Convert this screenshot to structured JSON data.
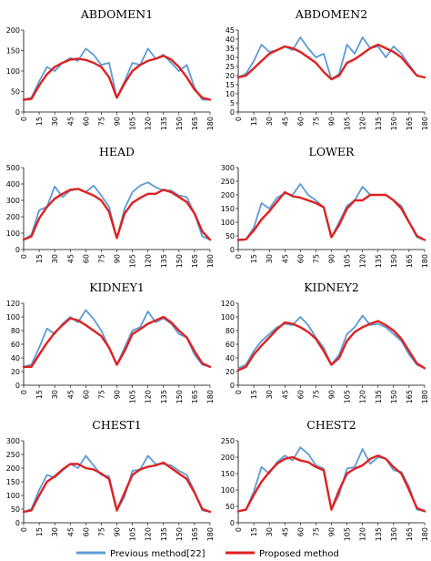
{
  "legend": {
    "position": "bottom",
    "entries": [
      {
        "label": "Previous  method[22]",
        "color": "#5b9bd5"
      },
      {
        "label": "Proposed method",
        "color": "#e02020"
      }
    ]
  },
  "colors": {
    "previous": "#5b9bd5",
    "proposed": "#e02020"
  },
  "chart_data": [
    {
      "type": "line",
      "title": "ABDOMEN1",
      "xlabel": "",
      "ylabel": "",
      "x": [
        0,
        7.5,
        15,
        22.5,
        30,
        37.5,
        45,
        52.5,
        60,
        67.5,
        75,
        82.5,
        90,
        97.5,
        105,
        112.5,
        120,
        127.5,
        135,
        142.5,
        150,
        157.5,
        165,
        172.5,
        180
      ],
      "xticks": [
        0,
        15,
        30,
        45,
        60,
        75,
        90,
        105,
        120,
        135,
        150,
        165,
        180
      ],
      "ylim": [
        0,
        200
      ],
      "yticks": [
        0,
        50,
        100,
        150,
        200
      ],
      "grid": false,
      "legend": "bottom",
      "series": [
        {
          "name": "Previous  method[22]",
          "values": [
            30,
            35,
            75,
            110,
            100,
            120,
            132,
            125,
            155,
            140,
            115,
            120,
            35,
            75,
            120,
            115,
            155,
            130,
            140,
            120,
            100,
            115,
            60,
            30,
            30
          ]
        },
        {
          "name": "Proposed method",
          "values": [
            30,
            32,
            65,
            92,
            110,
            120,
            128,
            130,
            127,
            120,
            110,
            85,
            35,
            70,
            100,
            115,
            125,
            130,
            137,
            128,
            110,
            85,
            55,
            35,
            30
          ]
        }
      ]
    },
    {
      "type": "line",
      "title": "ABDOMEN2",
      "xlabel": "",
      "ylabel": "",
      "x": [
        0,
        7.5,
        15,
        22.5,
        30,
        37.5,
        45,
        52.5,
        60,
        67.5,
        75,
        82.5,
        90,
        97.5,
        105,
        112.5,
        120,
        127.5,
        135,
        142.5,
        150,
        157.5,
        165,
        172.5,
        180
      ],
      "xticks": [
        0,
        15,
        30,
        45,
        60,
        75,
        90,
        105,
        120,
        135,
        150,
        165,
        180
      ],
      "ylim": [
        0,
        45
      ],
      "yticks": [
        0,
        5,
        10,
        15,
        20,
        25,
        30,
        35,
        40,
        45
      ],
      "grid": false,
      "legend": "bottom",
      "series": [
        {
          "name": "Previous  method[22]",
          "values": [
            19,
            21,
            28,
            37,
            33,
            34,
            36,
            34,
            41,
            35,
            30,
            32,
            18,
            21,
            37,
            32,
            41,
            35,
            36,
            30,
            36,
            32,
            26,
            20,
            19
          ]
        },
        {
          "name": "Proposed method",
          "values": [
            19,
            20,
            24,
            28,
            32,
            34,
            36,
            35,
            33,
            30,
            27,
            22,
            18,
            20,
            27,
            29,
            32,
            35,
            37,
            35,
            33,
            30,
            25,
            20,
            19
          ]
        }
      ]
    },
    {
      "type": "line",
      "title": "HEAD",
      "xlabel": "",
      "ylabel": "",
      "x": [
        0,
        7.5,
        15,
        22.5,
        30,
        37.5,
        45,
        52.5,
        60,
        67.5,
        75,
        82.5,
        90,
        97.5,
        105,
        112.5,
        120,
        127.5,
        135,
        142.5,
        150,
        157.5,
        165,
        172.5,
        180
      ],
      "xticks": [
        0,
        15,
        30,
        45,
        60,
        75,
        90,
        105,
        120,
        135,
        150,
        165,
        180
      ],
      "ylim": [
        0,
        500
      ],
      "yticks": [
        0,
        100,
        200,
        300,
        400,
        500
      ],
      "grid": false,
      "legend": "bottom",
      "series": [
        {
          "name": "Previous  method[22]",
          "values": [
            60,
            90,
            240,
            260,
            385,
            320,
            360,
            370,
            350,
            390,
            330,
            260,
            70,
            250,
            350,
            390,
            410,
            380,
            360,
            360,
            330,
            320,
            220,
            80,
            60
          ]
        },
        {
          "name": "Proposed method",
          "values": [
            60,
            80,
            190,
            260,
            310,
            340,
            365,
            370,
            350,
            330,
            300,
            230,
            70,
            220,
            285,
            315,
            340,
            340,
            365,
            350,
            320,
            290,
            220,
            110,
            60
          ]
        }
      ]
    },
    {
      "type": "line",
      "title": "LOWER",
      "xlabel": "",
      "ylabel": "",
      "x": [
        0,
        7.5,
        15,
        22.5,
        30,
        37.5,
        45,
        52.5,
        60,
        67.5,
        75,
        82.5,
        90,
        97.5,
        105,
        112.5,
        120,
        127.5,
        135,
        142.5,
        150,
        157.5,
        165,
        172.5,
        180
      ],
      "xticks": [
        0,
        15,
        30,
        45,
        60,
        75,
        90,
        105,
        120,
        135,
        150,
        165,
        180
      ],
      "ylim": [
        0,
        300
      ],
      "yticks": [
        0,
        50,
        100,
        150,
        200,
        250,
        300
      ],
      "grid": false,
      "legend": "bottom",
      "series": [
        {
          "name": "Previous  method[22]",
          "values": [
            35,
            37,
            80,
            170,
            150,
            190,
            205,
            200,
            240,
            200,
            180,
            155,
            45,
            100,
            160,
            180,
            230,
            200,
            200,
            200,
            180,
            160,
            100,
            45,
            35
          ]
        },
        {
          "name": "Proposed method",
          "values": [
            35,
            37,
            70,
            110,
            140,
            175,
            210,
            195,
            190,
            180,
            170,
            155,
            45,
            90,
            150,
            180,
            180,
            200,
            200,
            200,
            180,
            150,
            100,
            50,
            35
          ]
        }
      ]
    },
    {
      "type": "line",
      "title": "KIDNEY1",
      "xlabel": "",
      "ylabel": "",
      "x": [
        0,
        7.5,
        15,
        22.5,
        30,
        37.5,
        45,
        52.5,
        60,
        67.5,
        75,
        82.5,
        90,
        97.5,
        105,
        112.5,
        120,
        127.5,
        135,
        142.5,
        150,
        157.5,
        165,
        172.5,
        180
      ],
      "xticks": [
        0,
        15,
        30,
        45,
        60,
        75,
        90,
        105,
        120,
        135,
        150,
        165,
        180
      ],
      "ylim": [
        0,
        120
      ],
      "yticks": [
        0,
        20,
        40,
        60,
        80,
        100,
        120
      ],
      "grid": false,
      "legend": "bottom",
      "series": [
        {
          "name": "Previous  method[22]",
          "values": [
            27,
            30,
            55,
            83,
            75,
            90,
            100,
            92,
            110,
            97,
            80,
            55,
            30,
            55,
            80,
            85,
            108,
            92,
            98,
            90,
            75,
            70,
            45,
            30,
            27
          ]
        },
        {
          "name": "Proposed method",
          "values": [
            27,
            27,
            45,
            62,
            77,
            88,
            98,
            95,
            88,
            80,
            72,
            55,
            30,
            50,
            75,
            82,
            90,
            95,
            100,
            92,
            80,
            70,
            50,
            32,
            27
          ]
        }
      ]
    },
    {
      "type": "line",
      "title": "KIDNEY2",
      "xlabel": "",
      "ylabel": "",
      "x": [
        0,
        7.5,
        15,
        22.5,
        30,
        37.5,
        45,
        52.5,
        60,
        67.5,
        75,
        82.5,
        90,
        97.5,
        105,
        112.5,
        120,
        127.5,
        135,
        142.5,
        150,
        157.5,
        165,
        172.5,
        180
      ],
      "xticks": [
        0,
        15,
        30,
        45,
        60,
        75,
        90,
        105,
        120,
        135,
        150,
        165,
        180
      ],
      "ylim": [
        0,
        120
      ],
      "yticks": [
        0,
        20,
        40,
        60,
        80,
        100,
        120
      ],
      "grid": false,
      "legend": "bottom",
      "series": [
        {
          "name": "Previous  method[22]",
          "values": [
            25,
            30,
            50,
            65,
            75,
            85,
            90,
            88,
            100,
            88,
            70,
            55,
            30,
            45,
            75,
            85,
            102,
            88,
            90,
            85,
            75,
            65,
            45,
            30,
            25
          ]
        },
        {
          "name": "Proposed method",
          "values": [
            22,
            27,
            45,
            58,
            70,
            82,
            92,
            90,
            85,
            78,
            68,
            50,
            30,
            40,
            65,
            78,
            85,
            90,
            94,
            88,
            80,
            68,
            50,
            32,
            25
          ]
        }
      ]
    },
    {
      "type": "line",
      "title": "CHEST1",
      "xlabel": "",
      "ylabel": "",
      "x": [
        0,
        7.5,
        15,
        22.5,
        30,
        37.5,
        45,
        52.5,
        60,
        67.5,
        75,
        82.5,
        90,
        97.5,
        105,
        112.5,
        120,
        127.5,
        135,
        142.5,
        150,
        157.5,
        165,
        172.5,
        180
      ],
      "xticks": [
        0,
        15,
        30,
        45,
        60,
        75,
        90,
        105,
        120,
        135,
        150,
        165,
        180
      ],
      "ylim": [
        0,
        300
      ],
      "yticks": [
        0,
        50,
        100,
        150,
        200,
        250,
        300
      ],
      "grid": false,
      "legend": "bottom",
      "series": [
        {
          "name": "Previous  method[22]",
          "values": [
            40,
            50,
            120,
            175,
            165,
            190,
            215,
            200,
            245,
            210,
            175,
            170,
            45,
            95,
            190,
            195,
            245,
            215,
            215,
            210,
            190,
            175,
            115,
            45,
            40
          ]
        },
        {
          "name": "Proposed method",
          "values": [
            40,
            45,
            100,
            150,
            170,
            195,
            215,
            215,
            200,
            195,
            180,
            160,
            45,
            110,
            175,
            195,
            205,
            210,
            220,
            200,
            180,
            160,
            110,
            50,
            40
          ]
        }
      ]
    },
    {
      "type": "line",
      "title": "CHEST2",
      "xlabel": "",
      "ylabel": "",
      "x": [
        0,
        7.5,
        15,
        22.5,
        30,
        37.5,
        45,
        52.5,
        60,
        67.5,
        75,
        82.5,
        90,
        97.5,
        105,
        112.5,
        120,
        127.5,
        135,
        142.5,
        150,
        157.5,
        165,
        172.5,
        180
      ],
      "xticks": [
        0,
        15,
        30,
        45,
        60,
        75,
        90,
        105,
        120,
        135,
        150,
        165,
        180
      ],
      "ylim": [
        0,
        250
      ],
      "yticks": [
        0,
        50,
        100,
        150,
        200,
        250
      ],
      "grid": false,
      "legend": "bottom",
      "series": [
        {
          "name": "Previous  method[22]",
          "values": [
            35,
            40,
            95,
            170,
            150,
            185,
            205,
            190,
            230,
            210,
            175,
            165,
            40,
            85,
            165,
            170,
            225,
            180,
            200,
            195,
            160,
            155,
            110,
            40,
            35
          ]
        },
        {
          "name": "Proposed method",
          "values": [
            35,
            40,
            85,
            125,
            155,
            180,
            195,
            200,
            190,
            185,
            170,
            160,
            40,
            100,
            150,
            165,
            175,
            195,
            205,
            195,
            170,
            150,
            100,
            45,
            35
          ]
        }
      ]
    }
  ]
}
